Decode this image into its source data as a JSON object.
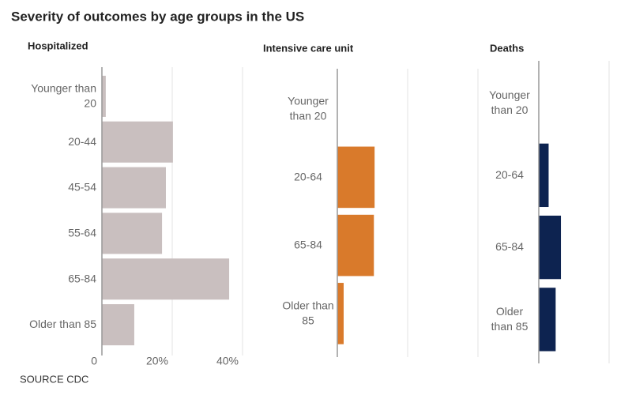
{
  "title": "Severity of outcomes by age groups in the US",
  "source": "SOURCE CDC",
  "chart_data": [
    {
      "type": "bar",
      "orientation": "horizontal",
      "title": "Hospitalized",
      "categories": [
        "Younger than 20",
        "20-44",
        "45-54",
        "55-64",
        "65-84",
        "Older than 85"
      ],
      "values": [
        1.1,
        20.2,
        18.2,
        17.1,
        36.2,
        9.2
      ],
      "color": "#c9bfbf",
      "xlim": [
        0,
        40
      ],
      "xticks": [
        0,
        {
          "value": 20,
          "label": "20%"
        },
        {
          "value": 40,
          "label": "40%"
        }
      ],
      "grid": true,
      "tick_labels": true
    },
    {
      "type": "bar",
      "orientation": "horizontal",
      "title": "Intensive care unit",
      "categories": [
        "Younger than 20",
        "20-64",
        "65-84",
        "Older than 85"
      ],
      "values": [
        null,
        10.6,
        10.4,
        1.8
      ],
      "color": "#d97a2b",
      "xlim": [
        0,
        40
      ],
      "xticks": [
        0,
        20,
        40
      ],
      "grid": true,
      "tick_labels": false
    },
    {
      "type": "bar",
      "orientation": "horizontal",
      "title": "Deaths",
      "categories": [
        "Younger than 20",
        "20-64",
        "65-84",
        "Older than 85"
      ],
      "values": [
        null,
        2.8,
        6.3,
        4.8
      ],
      "color": "#0d2350",
      "xlim": [
        0,
        40
      ],
      "xticks": [
        0,
        20,
        40
      ],
      "grid": true,
      "tick_labels": false
    }
  ]
}
